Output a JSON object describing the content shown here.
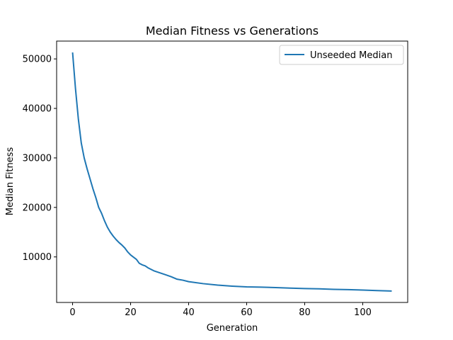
{
  "chart_data": {
    "type": "line",
    "title": "Median Fitness vs Generations",
    "xlabel": "Generation",
    "ylabel": "Median Fitness",
    "xlim": [
      -5.5,
      115.5
    ],
    "ylim": [
      800,
      53600
    ],
    "xticks": [
      0,
      20,
      40,
      60,
      80,
      100
    ],
    "yticks": [
      10000,
      20000,
      30000,
      40000,
      50000
    ],
    "grid": false,
    "legend": "top-right",
    "series": [
      {
        "name": "Unseeded Median",
        "color": "#1f77b4",
        "x": [
          0,
          1,
          2,
          3,
          4,
          5,
          6,
          7,
          8,
          9,
          10,
          11,
          12,
          13,
          14,
          15,
          16,
          17,
          18,
          19,
          20,
          22,
          23,
          24,
          25,
          26,
          28,
          30,
          32,
          34,
          36,
          38,
          40,
          45,
          50,
          55,
          60,
          65,
          70,
          75,
          80,
          85,
          90,
          95,
          100,
          105,
          110
        ],
        "y": [
          51300,
          44000,
          37800,
          33000,
          30000,
          27800,
          25800,
          23800,
          22000,
          20000,
          18800,
          17300,
          16000,
          15000,
          14200,
          13500,
          12900,
          12400,
          11800,
          11000,
          10400,
          9500,
          8700,
          8400,
          8200,
          7800,
          7200,
          6800,
          6400,
          6000,
          5500,
          5300,
          5000,
          4600,
          4300,
          4100,
          3950,
          3900,
          3800,
          3700,
          3600,
          3550,
          3450,
          3400,
          3300,
          3200,
          3100
        ]
      }
    ]
  }
}
